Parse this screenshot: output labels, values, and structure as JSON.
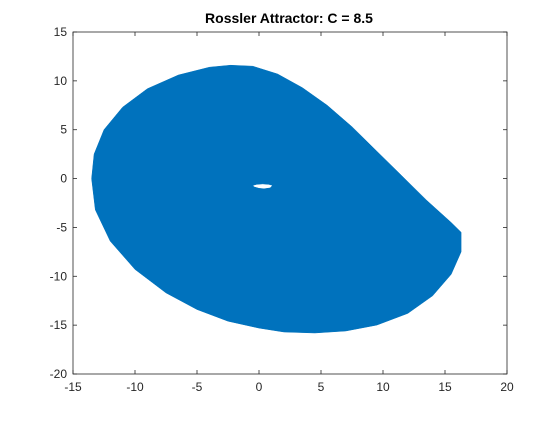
{
  "chart_data": {
    "type": "line",
    "title": "Rossler Attractor: C = 8.5",
    "xlabel": "",
    "ylabel": "",
    "xlim": [
      -15,
      20
    ],
    "ylim": [
      -20,
      15
    ],
    "xticks": [
      -15,
      -10,
      -5,
      0,
      5,
      10,
      15,
      20
    ],
    "yticks": [
      -20,
      -15,
      -10,
      -5,
      0,
      5,
      10,
      15
    ],
    "xtick_labels": [
      "-15",
      "-10",
      "-5",
      "0",
      "5",
      "10",
      "15",
      "20"
    ],
    "ytick_labels": [
      "-20",
      "-15",
      "-10",
      "-5",
      "0",
      "5",
      "10",
      "15"
    ],
    "grid": false,
    "series_color": "#0072BD",
    "series": [
      {
        "outer_boundary": {
          "x": [
            -13.5,
            -13.3,
            -12.5,
            -11.0,
            -9.0,
            -6.5,
            -4.0,
            -2.3,
            -0.5,
            1.5,
            3.5,
            5.5,
            7.5,
            9.5,
            11.5,
            13.5,
            15.5,
            16.3,
            16.3,
            15.5,
            14.0,
            12.0,
            9.5,
            7.0,
            4.5,
            2.0,
            0.0,
            -2.5,
            -5.0,
            -7.5,
            -10.0,
            -12.0,
            -13.2,
            -13.5
          ],
          "y": [
            0.0,
            2.5,
            5.0,
            7.3,
            9.2,
            10.6,
            11.4,
            11.6,
            11.5,
            10.7,
            9.3,
            7.5,
            5.3,
            2.8,
            0.3,
            -2.2,
            -4.5,
            -5.5,
            -7.5,
            -9.8,
            -12.0,
            -13.8,
            -15.0,
            -15.6,
            -15.8,
            -15.7,
            -15.3,
            -14.6,
            -13.4,
            -11.7,
            -9.3,
            -6.4,
            -3.2,
            0.0
          ]
        },
        "inner_hole": {
          "x": [
            -0.5,
            -0.2,
            0.3,
            0.8,
            1.1,
            0.9,
            0.4,
            0.0,
            -0.4,
            -0.5
          ],
          "y": [
            -0.7,
            -0.6,
            -0.55,
            -0.6,
            -0.7,
            -0.95,
            -1.05,
            -1.0,
            -0.85,
            -0.7
          ]
        }
      }
    ]
  }
}
